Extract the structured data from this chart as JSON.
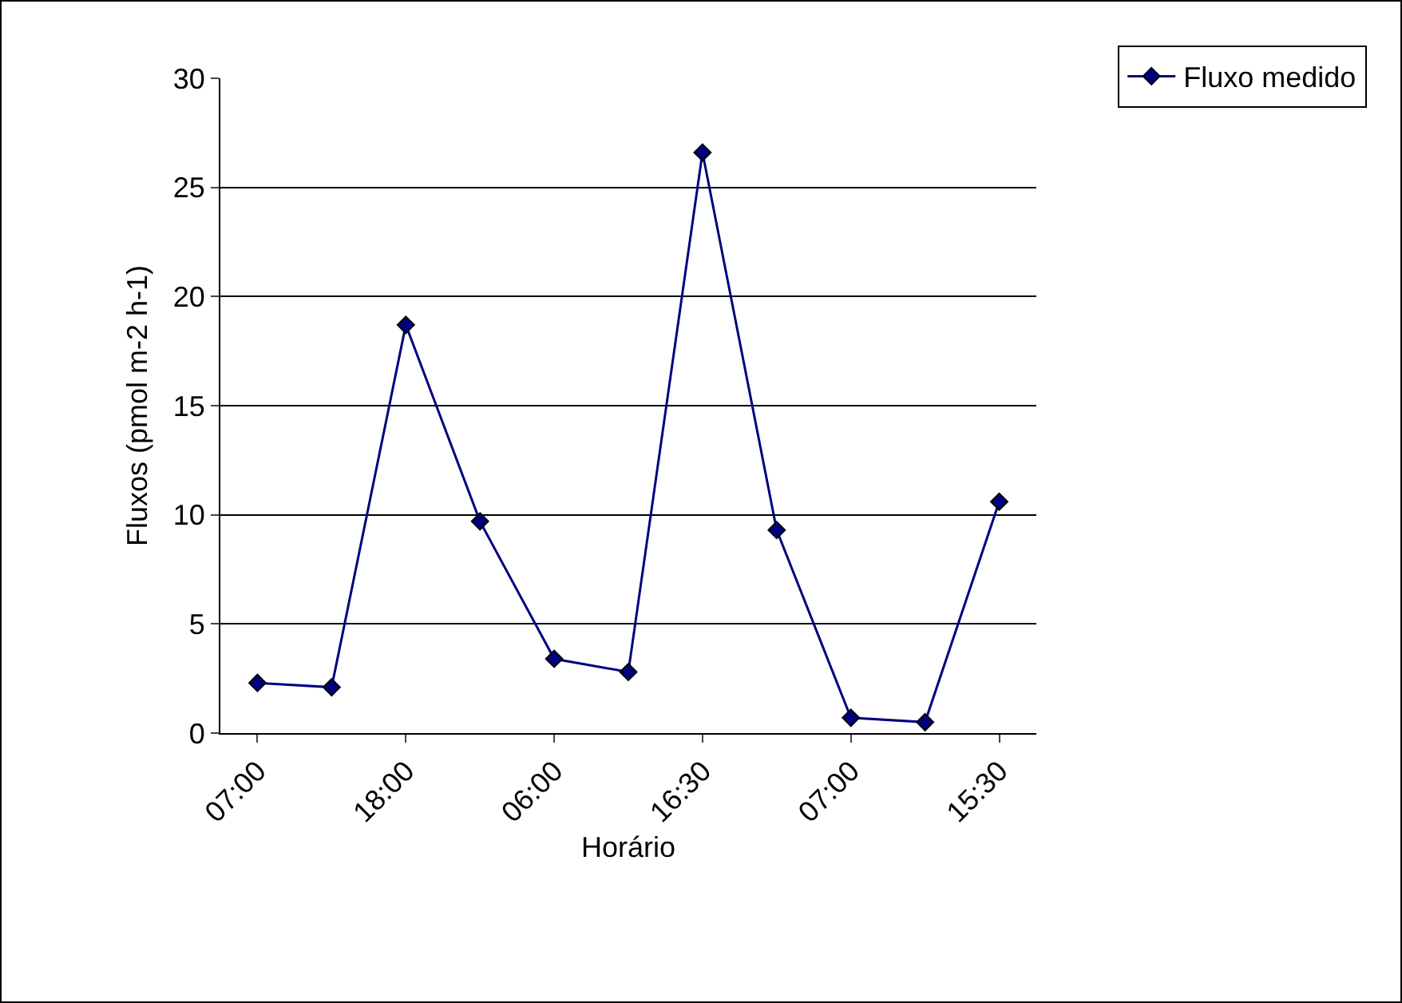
{
  "chart_data": {
    "type": "line",
    "xlabel": "Horário",
    "ylabel": "Fluxos (pmol m-2 h-1)",
    "categories": [
      "07:00",
      null,
      "18:00",
      null,
      "06:00",
      null,
      "16:30",
      null,
      "07:00",
      null,
      "15:30"
    ],
    "series": [
      {
        "name": "Fluxo medido",
        "color": "#000080",
        "values": [
          2.3,
          2.1,
          18.7,
          9.7,
          3.4,
          2.8,
          26.6,
          9.3,
          0.7,
          0.5,
          10.6
        ]
      }
    ],
    "ylim": [
      0,
      30
    ],
    "yticks": [
      0,
      5,
      10,
      15,
      20,
      25,
      30
    ],
    "grid": "y",
    "legend": "top right",
    "marker": "diamond",
    "line_style": "solid"
  }
}
